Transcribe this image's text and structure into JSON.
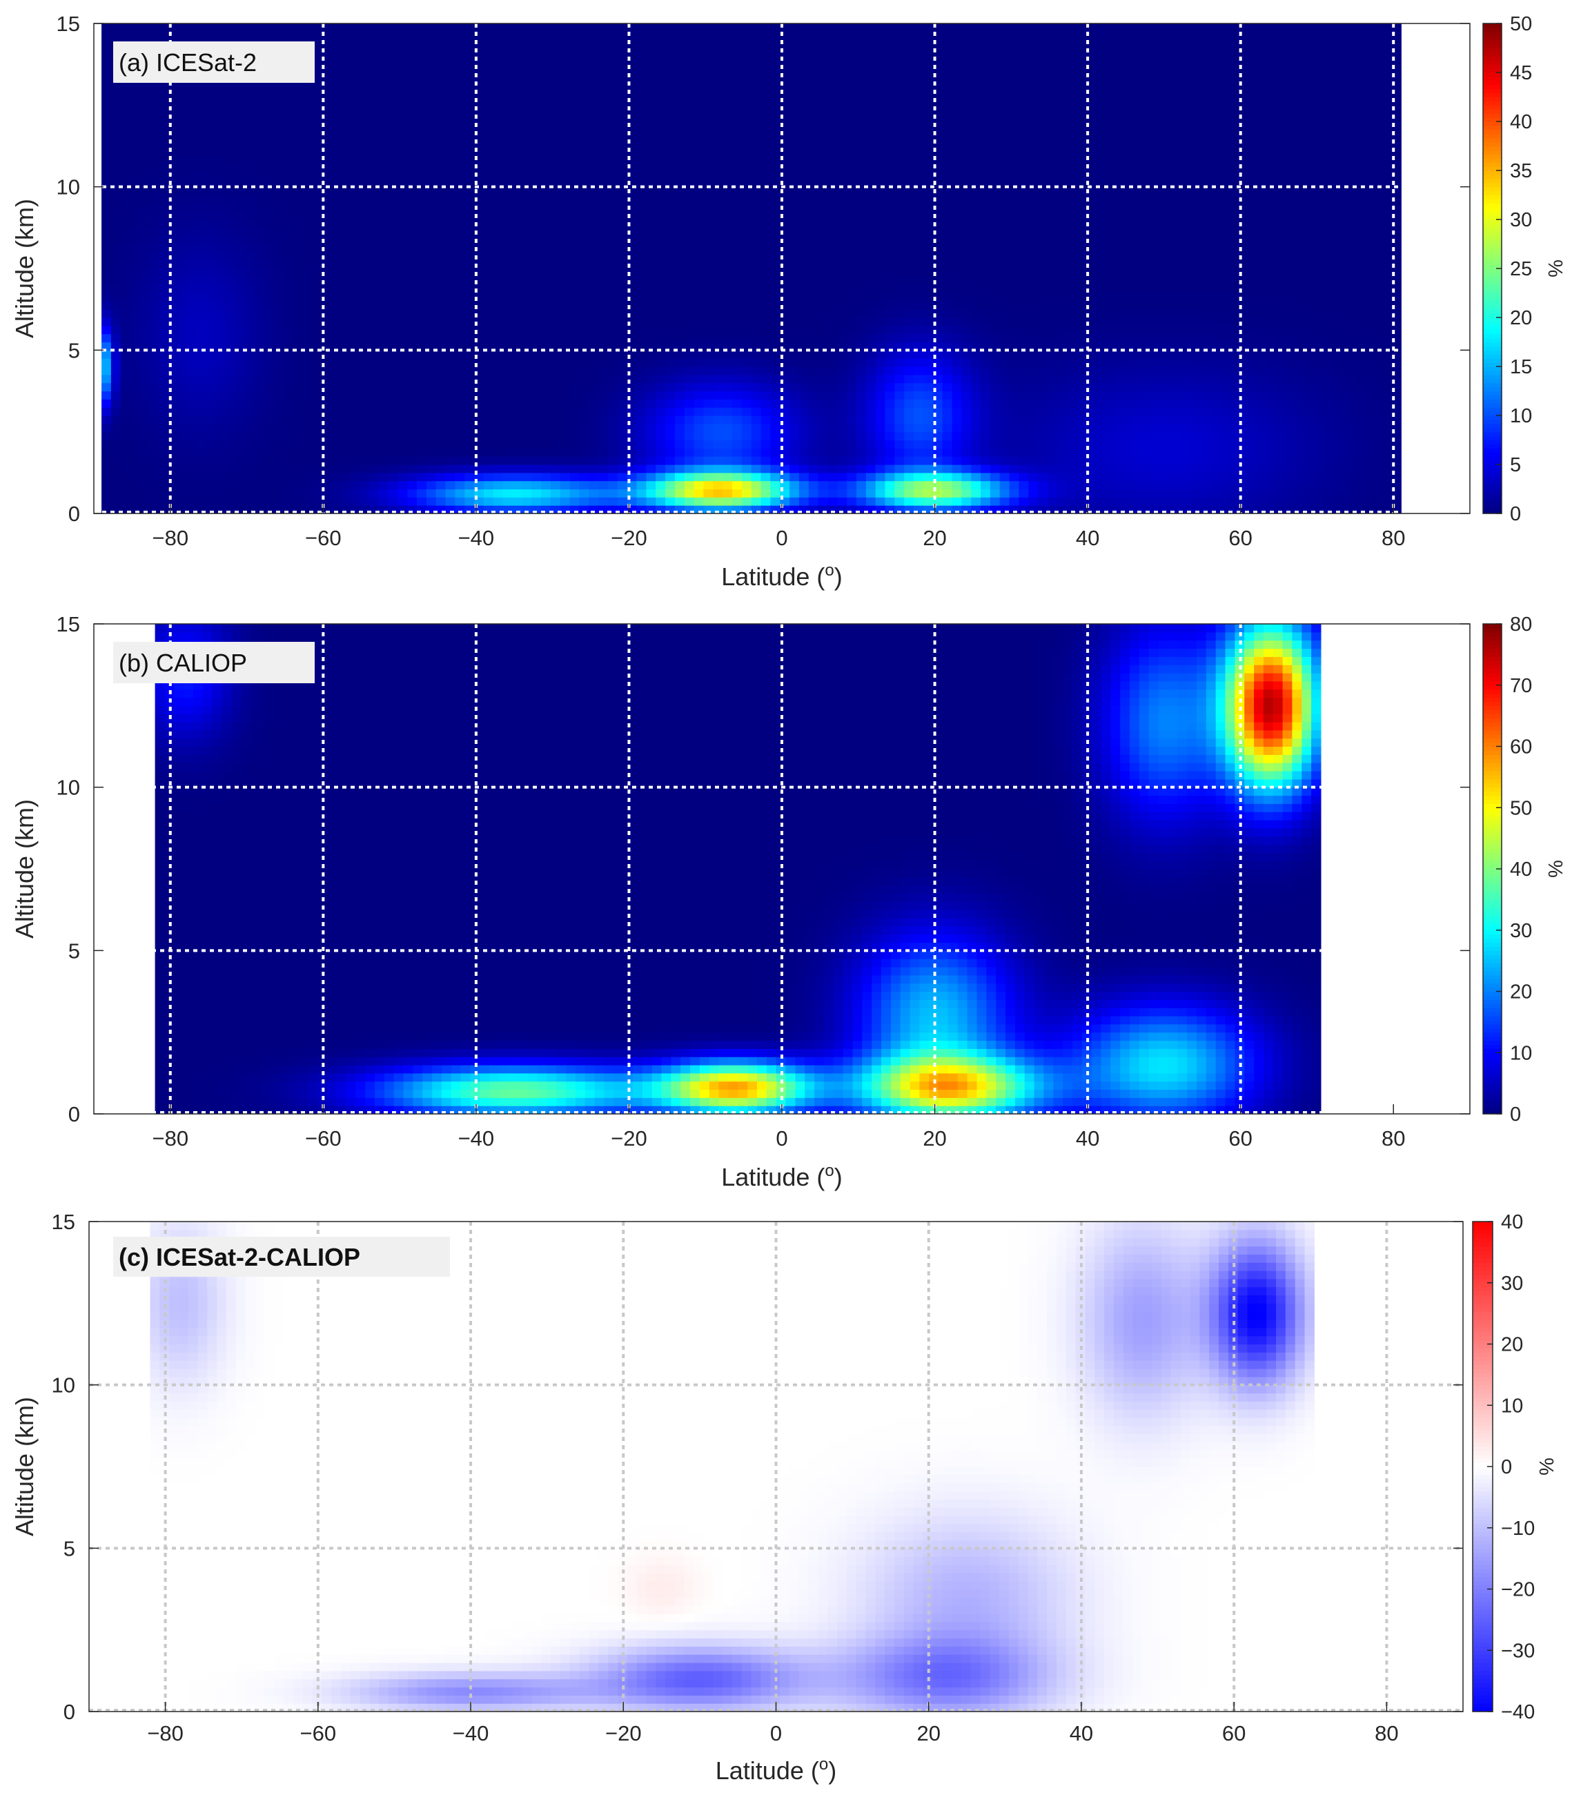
{
  "chart_data": [
    {
      "type": "heatmap",
      "panel_label": "(a) ICESat-2",
      "xlabel": "Latitude (",
      "xlabel_sup": "o",
      "xlabel_end": ")",
      "ylabel": "Altitude (km)",
      "xlim": [
        -90,
        90
      ],
      "ylim": [
        0,
        15
      ],
      "xticks": [
        "-80",
        "-60",
        "-40",
        "-20",
        "0",
        "20",
        "40",
        "60",
        "80"
      ],
      "yticks": [
        "0",
        "5",
        "10",
        "15"
      ],
      "grid_x": [
        -80,
        -60,
        -40,
        -20,
        0,
        20,
        40,
        60,
        80
      ],
      "grid_y": [
        5,
        10
      ],
      "grid_color": "#ffffff",
      "data_extent_lat": [
        -89,
        81
      ],
      "colormap": "jet",
      "colorbar": {
        "label": "%",
        "min": 0,
        "max": 50,
        "ticks": [
          "0",
          "5",
          "10",
          "15",
          "20",
          "25",
          "30",
          "35",
          "40",
          "45",
          "50"
        ]
      },
      "features": [
        {
          "lat": -89,
          "alt": 4.5,
          "value": 17,
          "lat_width": 1.5,
          "alt_width": 1.2
        },
        {
          "lat": -76,
          "alt": 5.5,
          "value": 3,
          "lat_width": 8,
          "alt_width": 3
        },
        {
          "lat": -8,
          "alt": 0.7,
          "value": 32,
          "lat_width": 10,
          "alt_width": 0.6
        },
        {
          "lat": -35,
          "alt": 0.6,
          "value": 18,
          "lat_width": 14,
          "alt_width": 0.6
        },
        {
          "lat": 20,
          "alt": 0.7,
          "value": 25,
          "lat_width": 10,
          "alt_width": 0.6
        },
        {
          "lat": -8,
          "alt": 2.5,
          "value": 10,
          "lat_width": 10,
          "alt_width": 1.5
        },
        {
          "lat": 18,
          "alt": 3.0,
          "value": 10,
          "lat_width": 7,
          "alt_width": 2.0
        },
        {
          "lat": 50,
          "alt": 2.0,
          "value": 4,
          "lat_width": 20,
          "alt_width": 2.5
        }
      ]
    },
    {
      "type": "heatmap",
      "panel_label": "(b) CALIOP",
      "xlabel": "Latitude (",
      "xlabel_sup": "o",
      "xlabel_end": ")",
      "ylabel": "Altitude (km)",
      "xlim": [
        -90,
        90
      ],
      "ylim": [
        0,
        15
      ],
      "xticks": [
        "-80",
        "-60",
        "-40",
        "-20",
        "0",
        "20",
        "40",
        "60",
        "80"
      ],
      "yticks": [
        "0",
        "5",
        "10",
        "15"
      ],
      "grid_x": [
        -80,
        -60,
        -40,
        -20,
        0,
        20,
        40,
        60
      ],
      "grid_y": [
        5,
        10
      ],
      "grid_color": "#ffffff",
      "data_extent_lat": [
        -82,
        70.5
      ],
      "colormap": "jet",
      "colorbar": {
        "label": "%",
        "min": 0,
        "max": 80,
        "ticks": [
          "0",
          "10",
          "20",
          "30",
          "40",
          "50",
          "60",
          "70",
          "80"
        ]
      },
      "features": [
        {
          "lat": 64,
          "alt": 12.5,
          "value": 75,
          "lat_width": 6,
          "alt_width": 2.5
        },
        {
          "lat": 50,
          "alt": 12.0,
          "value": 20,
          "lat_width": 8,
          "alt_width": 3
        },
        {
          "lat": -78,
          "alt": 13.5,
          "value": 12,
          "lat_width": 6,
          "alt_width": 2
        },
        {
          "lat": -6,
          "alt": 0.8,
          "value": 55,
          "lat_width": 10,
          "alt_width": 0.8
        },
        {
          "lat": -35,
          "alt": 0.7,
          "value": 38,
          "lat_width": 18,
          "alt_width": 0.8
        },
        {
          "lat": 22,
          "alt": 0.8,
          "value": 48,
          "lat_width": 12,
          "alt_width": 1.0
        },
        {
          "lat": 20,
          "alt": 3.0,
          "value": 25,
          "lat_width": 10,
          "alt_width": 2.5
        },
        {
          "lat": 50,
          "alt": 1.5,
          "value": 28,
          "lat_width": 12,
          "alt_width": 1.8
        }
      ]
    },
    {
      "type": "heatmap",
      "panel_label": "(c) ICESat-2-CALIOP",
      "xlabel": "Latitude (",
      "xlabel_sup": "o",
      "xlabel_end": ")",
      "ylabel": "Altitude (km)",
      "xlim": [
        -90,
        90
      ],
      "ylim": [
        0,
        15
      ],
      "xticks": [
        "-80",
        "-60",
        "-40",
        "-20",
        "0",
        "20",
        "40",
        "60",
        "80"
      ],
      "yticks": [
        "0",
        "5",
        "10",
        "15"
      ],
      "grid_x": [
        -80,
        -60,
        -40,
        -20,
        0,
        20,
        40,
        60,
        80
      ],
      "grid_y": [
        5,
        10
      ],
      "grid_color": "#c8c8c8",
      "data_extent_lat": [
        -82,
        70.5
      ],
      "colormap": "bwr",
      "colorbar": {
        "label": "%",
        "min": -40,
        "max": 40,
        "ticks": [
          "-40",
          "-30",
          "-20",
          "-10",
          "0",
          "10",
          "20",
          "30",
          "40"
        ]
      },
      "features": [
        {
          "lat": 63,
          "alt": 12.2,
          "value": -40,
          "lat_width": 6,
          "alt_width": 2.2
        },
        {
          "lat": 48,
          "alt": 12.0,
          "value": -15,
          "lat_width": 8,
          "alt_width": 3
        },
        {
          "lat": -78,
          "alt": 12.5,
          "value": -10,
          "lat_width": 6,
          "alt_width": 2.5
        },
        {
          "lat": -10,
          "alt": 1.0,
          "value": -25,
          "lat_width": 14,
          "alt_width": 1.0
        },
        {
          "lat": -40,
          "alt": 0.6,
          "value": -18,
          "lat_width": 16,
          "alt_width": 0.6
        },
        {
          "lat": 22,
          "alt": 1.0,
          "value": -20,
          "lat_width": 14,
          "alt_width": 1.3
        },
        {
          "lat": 25,
          "alt": 3.5,
          "value": -12,
          "lat_width": 14,
          "alt_width": 2.5
        },
        {
          "lat": -15,
          "alt": 3.8,
          "value": 3,
          "lat_width": 5,
          "alt_width": 1.0
        }
      ]
    }
  ]
}
